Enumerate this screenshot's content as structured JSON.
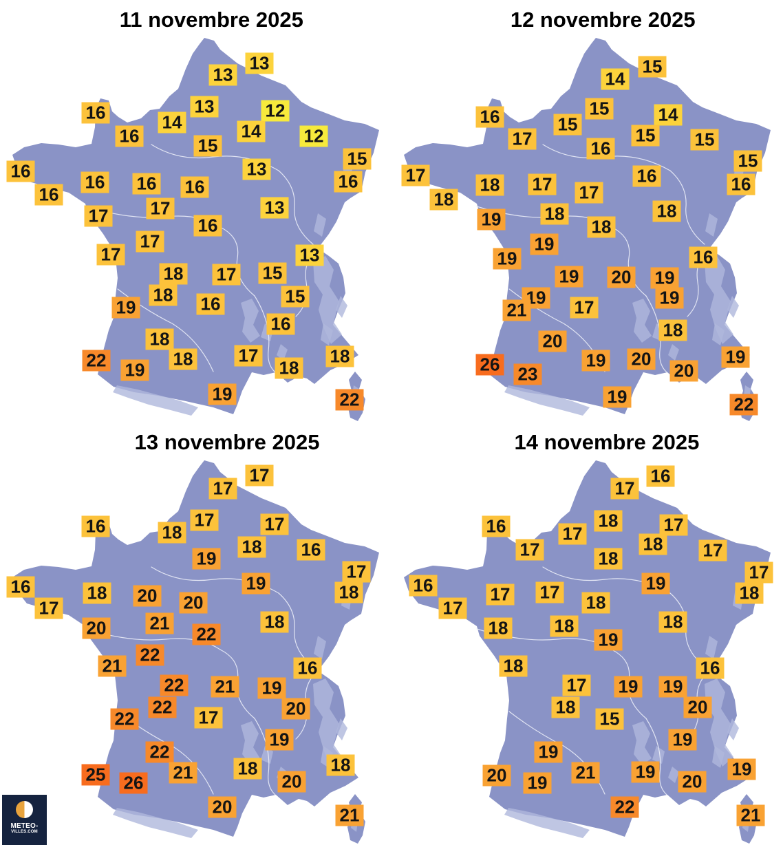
{
  "page": {
    "background": "#FFFFFF"
  },
  "logo": {
    "line1": "METEO-",
    "line2": "VILLES.COM",
    "bg": "#15233F",
    "circle_left": "#E8A33C",
    "circle_right": "#FFFFFF"
  },
  "map_colors": {
    "land": "#8A93C6",
    "relief": "#AFB8DC",
    "border_lines": "#EAEDF7",
    "badge_text": "#141414"
  },
  "temp_color_scale": [
    {
      "max": 12,
      "color": "#F7EA3C"
    },
    {
      "max": 14,
      "color": "#FCD33C"
    },
    {
      "max": 18,
      "color": "#FCC23B"
    },
    {
      "max": 21,
      "color": "#F9A233"
    },
    {
      "max": 23,
      "color": "#F7892A"
    },
    {
      "max": 99,
      "color": "#F86C1E"
    }
  ],
  "maps": [
    {
      "title": "11 novembre 2025",
      "badges": [
        [
          13,
          324,
          109
        ],
        [
          13,
          377,
          92
        ],
        [
          16,
          139,
          164
        ],
        [
          13,
          297,
          155
        ],
        [
          14,
          250,
          178
        ],
        [
          12,
          400,
          161
        ],
        [
          14,
          365,
          191
        ],
        [
          12,
          456,
          198
        ],
        [
          16,
          188,
          198
        ],
        [
          15,
          302,
          212
        ],
        [
          15,
          519,
          231
        ],
        [
          16,
          506,
          264
        ],
        [
          16,
          30,
          249
        ],
        [
          16,
          138,
          265
        ],
        [
          16,
          213,
          267
        ],
        [
          16,
          283,
          272
        ],
        [
          13,
          373,
          246
        ],
        [
          16,
          71,
          283
        ],
        [
          17,
          143,
          314
        ],
        [
          17,
          233,
          303
        ],
        [
          13,
          399,
          302
        ],
        [
          16,
          302,
          328
        ],
        [
          17,
          218,
          351
        ],
        [
          17,
          161,
          370
        ],
        [
          13,
          450,
          371
        ],
        [
          18,
          252,
          398
        ],
        [
          17,
          329,
          399
        ],
        [
          15,
          396,
          397
        ],
        [
          15,
          429,
          431
        ],
        [
          18,
          237,
          429
        ],
        [
          16,
          306,
          442
        ],
        [
          19,
          183,
          447
        ],
        [
          16,
          408,
          471
        ],
        [
          18,
          232,
          493
        ],
        [
          18,
          266,
          522
        ],
        [
          17,
          361,
          517
        ],
        [
          18,
          420,
          535
        ],
        [
          18,
          494,
          518
        ],
        [
          22,
          140,
          524
        ],
        [
          19,
          196,
          538
        ],
        [
          19,
          323,
          573
        ],
        [
          22,
          508,
          581
        ]
      ]
    },
    {
      "title": "12 novembre 2025",
      "badges": [
        [
          14,
          325,
          115
        ],
        [
          15,
          379,
          97
        ],
        [
          16,
          143,
          170
        ],
        [
          17,
          190,
          202
        ],
        [
          15,
          256,
          181
        ],
        [
          15,
          302,
          158
        ],
        [
          14,
          402,
          167
        ],
        [
          15,
          369,
          197
        ],
        [
          15,
          455,
          203
        ],
        [
          16,
          304,
          216
        ],
        [
          17,
          35,
          255
        ],
        [
          18,
          76,
          290
        ],
        [
          18,
          143,
          269
        ],
        [
          17,
          219,
          268
        ],
        [
          17,
          287,
          280
        ],
        [
          16,
          371,
          256
        ],
        [
          15,
          518,
          234
        ],
        [
          16,
          508,
          268
        ],
        [
          19,
          145,
          319
        ],
        [
          18,
          237,
          311
        ],
        [
          18,
          305,
          330
        ],
        [
          18,
          400,
          307
        ],
        [
          19,
          222,
          355
        ],
        [
          19,
          168,
          376
        ],
        [
          16,
          453,
          374
        ],
        [
          19,
          258,
          402
        ],
        [
          20,
          334,
          403
        ],
        [
          19,
          397,
          404
        ],
        [
          19,
          210,
          433
        ],
        [
          17,
          280,
          447
        ],
        [
          19,
          404,
          433
        ],
        [
          21,
          182,
          451
        ],
        [
          18,
          409,
          480
        ],
        [
          20,
          234,
          496
        ],
        [
          19,
          297,
          524
        ],
        [
          20,
          363,
          522
        ],
        [
          20,
          425,
          539
        ],
        [
          19,
          500,
          519
        ],
        [
          26,
          143,
          530
        ],
        [
          23,
          198,
          544
        ],
        [
          19,
          328,
          577
        ],
        [
          22,
          512,
          588
        ]
      ]
    },
    {
      "title": "13 novembre 2025",
      "badges": [
        [
          17,
          324,
          96
        ],
        [
          17,
          377,
          77
        ],
        [
          16,
          139,
          151
        ],
        [
          18,
          250,
          160
        ],
        [
          17,
          297,
          142
        ],
        [
          17,
          399,
          148
        ],
        [
          18,
          366,
          181
        ],
        [
          19,
          300,
          198
        ],
        [
          16,
          452,
          185
        ],
        [
          19,
          372,
          234
        ],
        [
          17,
          518,
          217
        ],
        [
          18,
          507,
          247
        ],
        [
          16,
          30,
          239
        ],
        [
          18,
          141,
          248
        ],
        [
          20,
          214,
          252
        ],
        [
          20,
          281,
          262
        ],
        [
          17,
          71,
          270
        ],
        [
          20,
          140,
          299
        ],
        [
          21,
          232,
          292
        ],
        [
          22,
          300,
          308
        ],
        [
          18,
          399,
          290
        ],
        [
          22,
          218,
          338
        ],
        [
          21,
          163,
          354
        ],
        [
          16,
          447,
          357
        ],
        [
          22,
          253,
          382
        ],
        [
          21,
          327,
          384
        ],
        [
          19,
          395,
          386
        ],
        [
          22,
          236,
          414
        ],
        [
          17,
          303,
          429
        ],
        [
          20,
          430,
          416
        ],
        [
          22,
          181,
          431
        ],
        [
          19,
          406,
          461
        ],
        [
          22,
          232,
          479
        ],
        [
          18,
          360,
          503
        ],
        [
          18,
          495,
          498
        ],
        [
          25,
          139,
          512
        ],
        [
          26,
          194,
          524
        ],
        [
          21,
          266,
          509
        ],
        [
          20,
          424,
          522
        ],
        [
          20,
          323,
          559
        ],
        [
          21,
          508,
          571
        ]
      ]
    },
    {
      "title": "14 novembre 2025",
      "badges": [
        [
          17,
          339,
          96
        ],
        [
          16,
          391,
          78
        ],
        [
          16,
          152,
          151
        ],
        [
          17,
          263,
          162
        ],
        [
          18,
          315,
          143
        ],
        [
          17,
          410,
          149
        ],
        [
          17,
          201,
          185
        ],
        [
          18,
          380,
          177
        ],
        [
          17,
          467,
          186
        ],
        [
          18,
          315,
          198
        ],
        [
          17,
          534,
          218
        ],
        [
          18,
          520,
          248
        ],
        [
          16,
          46,
          237
        ],
        [
          17,
          89,
          270
        ],
        [
          17,
          158,
          250
        ],
        [
          17,
          230,
          247
        ],
        [
          18,
          297,
          262
        ],
        [
          19,
          384,
          234
        ],
        [
          18,
          409,
          290
        ],
        [
          18,
          155,
          299
        ],
        [
          18,
          251,
          296
        ],
        [
          19,
          315,
          316
        ],
        [
          18,
          177,
          354
        ],
        [
          16,
          463,
          357
        ],
        [
          17,
          269,
          382
        ],
        [
          19,
          344,
          384
        ],
        [
          19,
          409,
          384
        ],
        [
          18,
          253,
          414
        ],
        [
          15,
          317,
          431
        ],
        [
          20,
          445,
          414
        ],
        [
          19,
          423,
          461
        ],
        [
          19,
          228,
          479
        ],
        [
          20,
          153,
          513
        ],
        [
          19,
          212,
          524
        ],
        [
          21,
          282,
          509
        ],
        [
          19,
          369,
          508
        ],
        [
          20,
          437,
          522
        ],
        [
          19,
          509,
          504
        ],
        [
          22,
          339,
          559
        ],
        [
          21,
          522,
          571
        ]
      ]
    }
  ]
}
